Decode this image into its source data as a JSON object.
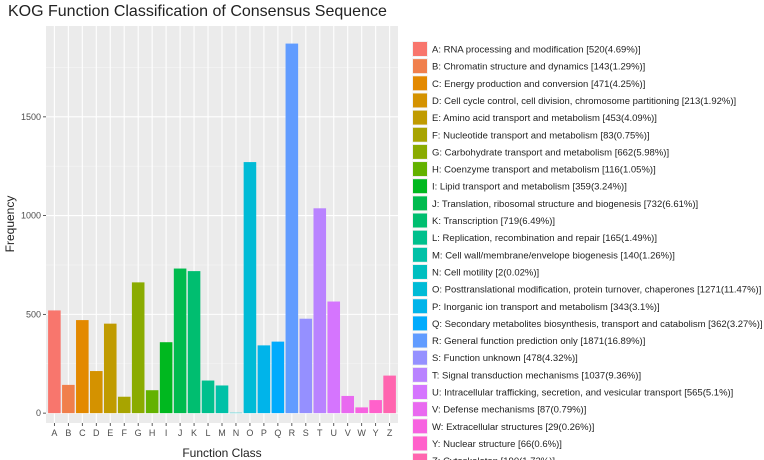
{
  "chart_data": {
    "type": "bar",
    "title": "KOG Function Classification of Consensus Sequence",
    "xlabel": "Function Class",
    "ylabel": "Frequency",
    "ylim": [
      -50,
      1960
    ],
    "yticks": [
      0,
      500,
      1000,
      1500
    ],
    "grid": true,
    "legend_position": "right",
    "categories": [
      "A",
      "B",
      "C",
      "D",
      "E",
      "F",
      "G",
      "H",
      "I",
      "J",
      "K",
      "L",
      "M",
      "N",
      "O",
      "P",
      "Q",
      "R",
      "S",
      "T",
      "U",
      "V",
      "W",
      "Y",
      "Z"
    ],
    "values": [
      520,
      143,
      471,
      213,
      453,
      83,
      662,
      116,
      359,
      732,
      719,
      165,
      140,
      2,
      1271,
      343,
      362,
      1871,
      478,
      1037,
      565,
      87,
      29,
      66,
      190
    ],
    "colors": [
      "#F8766D",
      "#F07F4C",
      "#E38900",
      "#D49200",
      "#C09B00",
      "#A8A400",
      "#8AAB00",
      "#63B200",
      "#00B81F",
      "#00BB4E",
      "#00BE70",
      "#00C08D",
      "#00C1A7",
      "#00BFC0",
      "#00BBD6",
      "#00B4EA",
      "#00ABFD",
      "#619CFF",
      "#9590FF",
      "#B983FF",
      "#D575FE",
      "#E96AF0",
      "#F763E0",
      "#FF61CB",
      "#FF65AF"
    ],
    "legend": [
      "A: RNA processing and modification [520(4.69%)]",
      "B: Chromatin structure and dynamics [143(1.29%)]",
      "C: Energy production and conversion [471(4.25%)]",
      "D: Cell cycle control, cell division, chromosome partitioning [213(1.92%)]",
      "E: Amino acid transport and metabolism [453(4.09%)]",
      "F: Nucleotide transport and metabolism [83(0.75%)]",
      "G: Carbohydrate transport and metabolism [662(5.98%)]",
      "H: Coenzyme transport and metabolism [116(1.05%)]",
      "I: Lipid transport and metabolism [359(3.24%)]",
      "J: Translation, ribosomal structure and biogenesis [732(6.61%)]",
      "K: Transcription [719(6.49%)]",
      "L: Replication, recombination and repair [165(1.49%)]",
      "M: Cell wall/membrane/envelope biogenesis [140(1.26%)]",
      "N: Cell motility [2(0.02%)]",
      "O: Posttranslational modification, protein turnover, chaperones [1271(11.47%)]",
      "P: Inorganic ion transport and metabolism [343(3.1%)]",
      "Q: Secondary metabolites biosynthesis, transport and catabolism [362(3.27%)]",
      "R: General function prediction only [1871(16.89%)]",
      "S: Function unknown [478(4.32%)]",
      "T: Signal transduction mechanisms [1037(9.36%)]",
      "U: Intracellular trafficking, secretion, and vesicular transport [565(5.1%)]",
      "V: Defense mechanisms [87(0.79%)]",
      "W: Extracellular structures [29(0.26%)]",
      "Y: Nuclear structure [66(0.6%)]",
      "Z: Cytoskeleton [190(1.72%)]"
    ]
  }
}
